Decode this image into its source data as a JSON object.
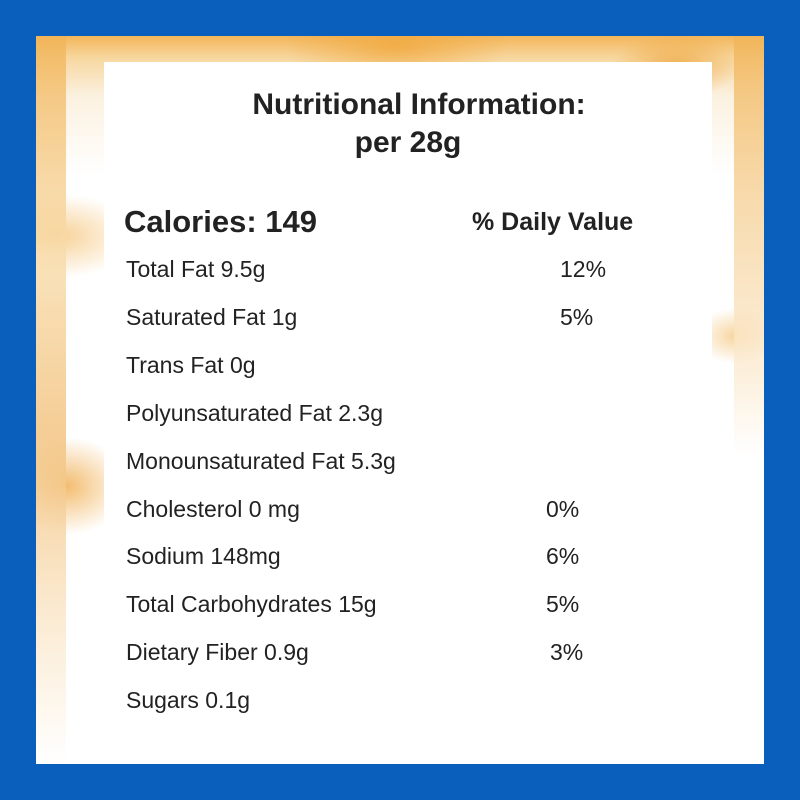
{
  "title_line1": "Nutritional Information:",
  "title_line2": "per 28g",
  "calories": "Calories: 149",
  "daily_value_header": "% Daily Value",
  "nutrients": [
    {
      "name": "Total Fat 9.5g",
      "dv": "12%"
    },
    {
      "name": "Saturated Fat 1g",
      "dv": "5%"
    },
    {
      "name": "Trans Fat 0g",
      "dv": ""
    },
    {
      "name": "Polyunsaturated Fat 2.3g",
      "dv": ""
    },
    {
      "name": "Monounsaturated Fat 5.3g",
      "dv": ""
    },
    {
      "name": "Cholesterol 0 mg",
      "dv": "0%"
    },
    {
      "name": "Sodium 148mg",
      "dv": "6%"
    },
    {
      "name": "Total Carbohydrates 15g",
      "dv": "5%"
    },
    {
      "name": "Dietary Fiber 0.9g",
      "dv": "3%"
    },
    {
      "name": "Sugars 0.1g",
      "dv": ""
    }
  ],
  "colors": {
    "border": "#0a5fbd",
    "text": "#222222",
    "accent": "#f3b559"
  }
}
